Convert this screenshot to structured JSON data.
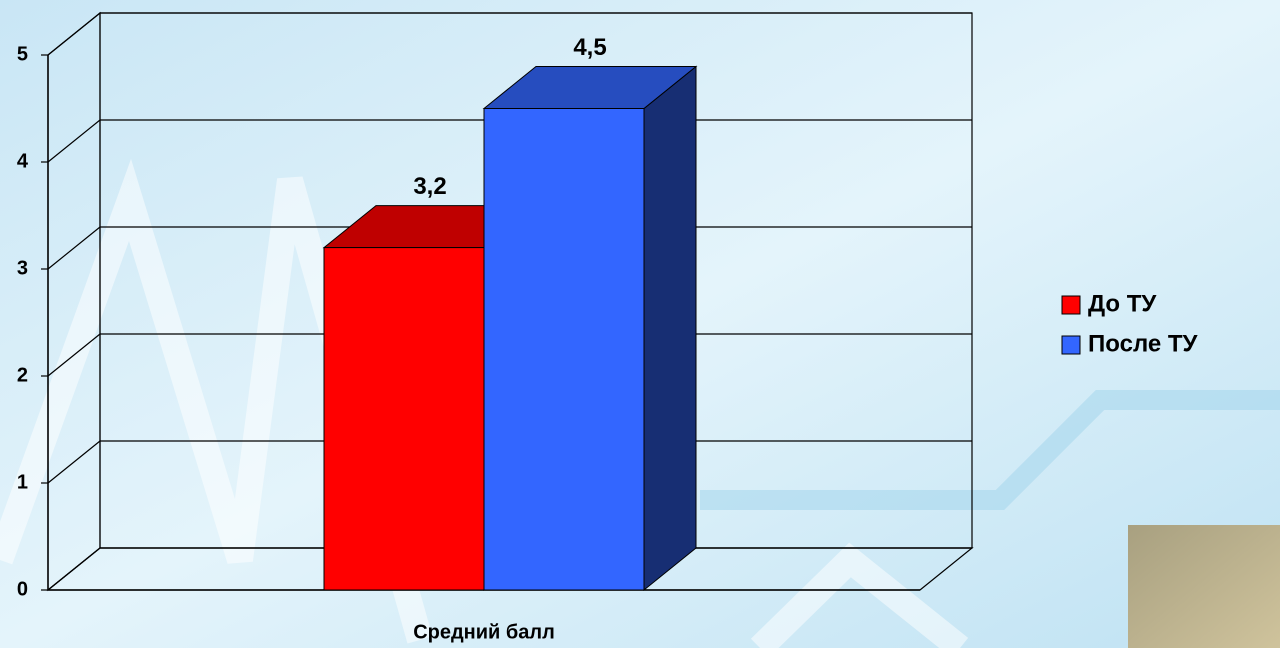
{
  "chart_data": {
    "type": "bar3d",
    "categories": [
      "Средний балл"
    ],
    "series": [
      {
        "name": "До ТУ",
        "color": "#ff0000",
        "values": [
          3.2
        ],
        "value_labels": [
          "3,2"
        ]
      },
      {
        "name": "После ТУ",
        "color": "#3366ff",
        "values": [
          4.5
        ],
        "value_labels": [
          "4,5"
        ]
      }
    ],
    "ylim": [
      0,
      5
    ],
    "yticks": [
      0,
      1,
      2,
      3,
      4,
      5
    ],
    "grid": true,
    "legend": "right"
  }
}
